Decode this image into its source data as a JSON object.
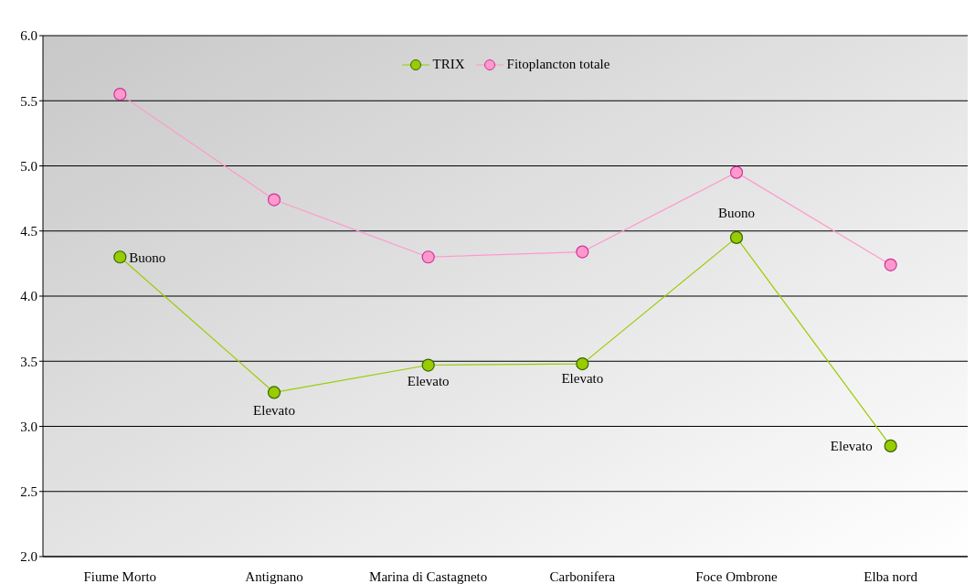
{
  "chart_data": {
    "type": "line",
    "categories": [
      "Fiume Morto",
      "Antignano",
      "Marina di Castagneto",
      "Carbonifera",
      "Foce Ombrone",
      "Elba nord"
    ],
    "series": [
      {
        "name": "TRIX",
        "color": "#99cc00",
        "values": [
          4.3,
          3.26,
          3.47,
          3.48,
          4.45,
          2.85
        ]
      },
      {
        "name": "Fitoplancton totale",
        "color": "#ff99cc",
        "values": [
          5.55,
          4.74,
          4.3,
          4.34,
          4.95,
          4.24
        ]
      }
    ],
    "ylim": [
      2,
      6
    ],
    "yticks": [
      {
        "value": 2,
        "label": "2.0"
      },
      {
        "value": 2.5,
        "label": "2.5"
      },
      {
        "value": 3,
        "label": "3.0"
      },
      {
        "value": 3.5,
        "label": "3.5"
      },
      {
        "value": 4,
        "label": "4.0"
      },
      {
        "value": 4.5,
        "label": "4.5"
      },
      {
        "value": 5,
        "label": "5.0"
      },
      {
        "value": 5.5,
        "label": "5.5"
      },
      {
        "value": 6,
        "label": "6.0"
      }
    ],
    "grid": "y",
    "legend": "top",
    "marker": "circle",
    "annotations": [
      {
        "text": "Buono",
        "x": "Fiume Morto",
        "y": 4.3
      },
      {
        "text": "Elevato",
        "x": "Antignano",
        "y": 3.26
      },
      {
        "text": "Elevato",
        "x": "Marina di Castagneto",
        "y": 3.47
      },
      {
        "text": "Elevato",
        "x": "Carbonifera",
        "y": 3.48
      },
      {
        "text": "Buono",
        "x": "Foce Ombrone",
        "y": 4.45
      },
      {
        "text": "Elevato",
        "x": "Elba nord",
        "y": 2.85
      }
    ]
  }
}
